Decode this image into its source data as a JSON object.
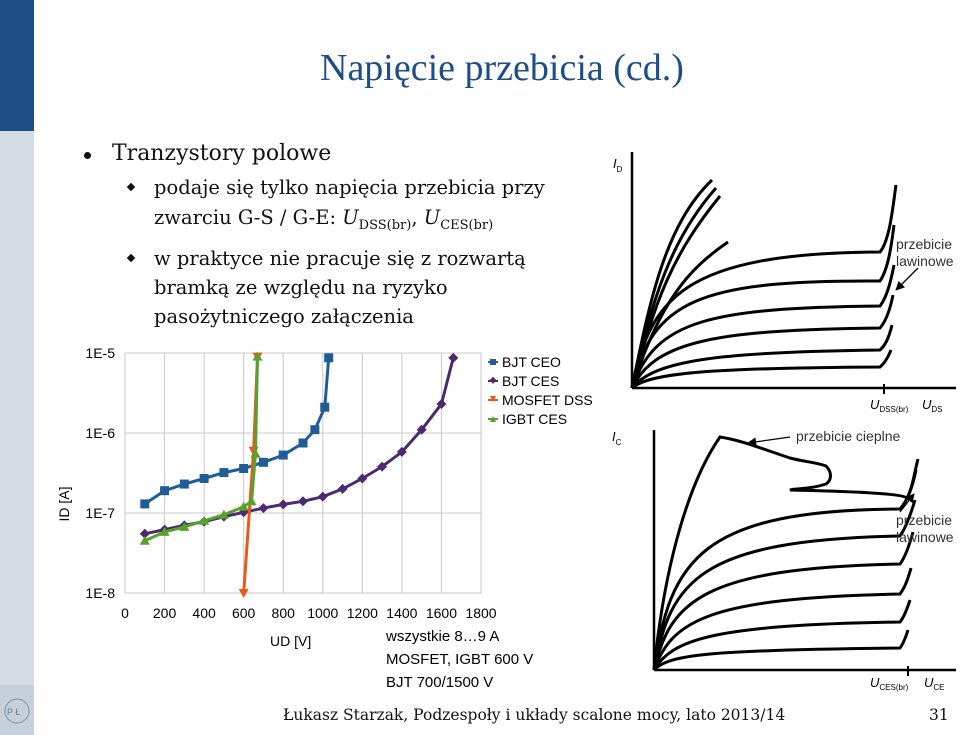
{
  "slide": {
    "title": "Napięcie przebicia (cd.)",
    "bullet1": "Tranzystory polowe",
    "sub1_line1": "podaje się tylko napięcia przebicia przy",
    "sub1_line2_prefix": "zwarciu G-S / G-E: ",
    "sub1_U": "U",
    "sub1_sub1": "DSS(br)",
    "sub1_sep": ", ",
    "sub1_sub2": "CES(br)",
    "sub2_line1": "w praktyce nie pracuje się z rozwartą",
    "sub2_line2": "bramką ze względu na ryzyko",
    "sub2_line3": "pasożytniczego załączenia",
    "footer": "Łukasz Starzak, Podzespoły i układy scalone mocy, lato 2013/14",
    "page": "31"
  },
  "chart_data": {
    "type": "line",
    "xlabel": "UD [V]",
    "ylabel": "ID [A]",
    "y_scale": "log",
    "xlim": [
      0,
      1800
    ],
    "ylim": [
      1e-08,
      1e-05
    ],
    "x_ticks": [
      "0",
      "200",
      "400",
      "600",
      "800",
      "1000",
      "1200",
      "1400",
      "1600",
      "1800"
    ],
    "y_ticks": [
      "1E-5",
      "1E-6",
      "1E-7",
      "1E-8"
    ],
    "legend_position": "right",
    "series": [
      {
        "name": "BJT CEO",
        "color": "#1f5d96",
        "marker": "square",
        "points": [
          [
            100,
            1.3e-07
          ],
          [
            200,
            1.9e-07
          ],
          [
            300,
            2.3e-07
          ],
          [
            400,
            2.7e-07
          ],
          [
            500,
            3.2e-07
          ],
          [
            600,
            3.6e-07
          ],
          [
            700,
            4.3e-07
          ],
          [
            800,
            5.3e-07
          ],
          [
            900,
            7.5e-07
          ],
          [
            960,
            1.1e-06
          ],
          [
            1010,
            2.1e-06
          ],
          [
            1030,
            8.7e-06
          ]
        ]
      },
      {
        "name": "BJT CES",
        "color": "#4b2a70",
        "marker": "diamond",
        "points": [
          [
            100,
            5.5e-08
          ],
          [
            200,
            6.2e-08
          ],
          [
            300,
            7e-08
          ],
          [
            400,
            7.8e-08
          ],
          [
            500,
            9e-08
          ],
          [
            600,
            1.02e-07
          ],
          [
            700,
            1.15e-07
          ],
          [
            800,
            1.28e-07
          ],
          [
            900,
            1.4e-07
          ],
          [
            1000,
            1.6e-07
          ],
          [
            1100,
            2e-07
          ],
          [
            1200,
            2.7e-07
          ],
          [
            1300,
            3.8e-07
          ],
          [
            1400,
            5.8e-07
          ],
          [
            1500,
            1.1e-06
          ],
          [
            1600,
            2.3e-06
          ],
          [
            1660,
            8.7e-06
          ]
        ]
      },
      {
        "name": "MOSFET DSS",
        "color": "#e85a1b",
        "marker": "triangle-down",
        "points": [
          [
            600,
            1e-08
          ],
          [
            650,
            6e-07
          ],
          [
            670,
            9e-06
          ]
        ]
      },
      {
        "name": "IGBT CES",
        "color": "#5aa02c",
        "marker": "triangle",
        "points": [
          [
            100,
            4.5e-08
          ],
          [
            200,
            5.8e-08
          ],
          [
            300,
            6.7e-08
          ],
          [
            400,
            8e-08
          ],
          [
            500,
            9.5e-08
          ],
          [
            600,
            1.2e-07
          ],
          [
            640,
            1.4e-07
          ],
          [
            660,
            5.5e-07
          ],
          [
            670,
            9e-06
          ]
        ]
      }
    ],
    "annotations": [
      "wszystkie 8…9 A",
      "MOSFET, IGBT 600 V",
      "BJT 700/1500 V"
    ]
  },
  "diagrams": {
    "top": {
      "y_label": "I",
      "y_sub": "D",
      "annotation": "przebicie\nlawinowe",
      "x_mark_main": "U",
      "x_mark_sub": "DSS(br)",
      "x_axis_main": "U",
      "x_axis_sub": "DS"
    },
    "bottom": {
      "y_label": "I",
      "y_sub": "C",
      "annotation_thermal": "przebicie cieplne",
      "annotation_avalanche": "przebicie\nlawinowe",
      "x_mark_main": "U",
      "x_mark_sub": "CES(br)",
      "x_axis_main": "U",
      "x_axis_sub": "CE"
    }
  }
}
